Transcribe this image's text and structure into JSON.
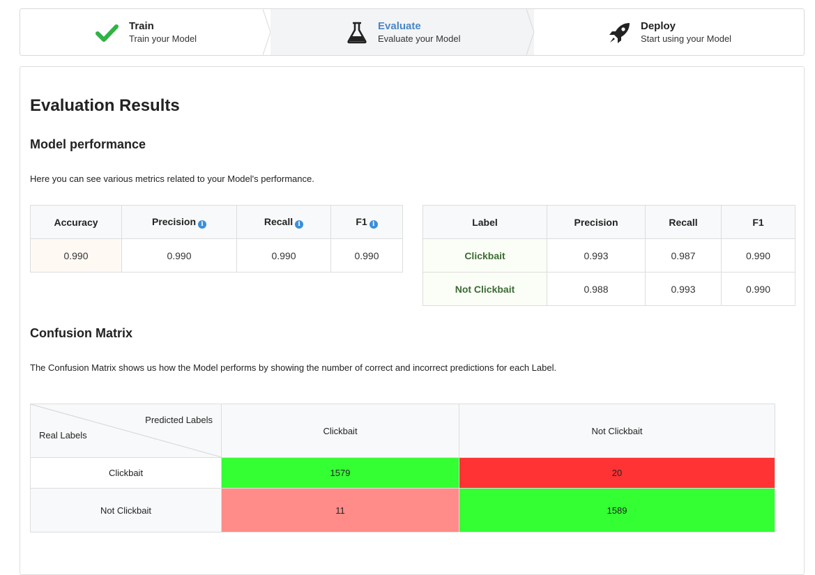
{
  "steps": [
    {
      "title": "Train",
      "desc": "Train your Model",
      "icon": "check-icon",
      "state": "done"
    },
    {
      "title": "Evaluate",
      "desc": "Evaluate your Model",
      "icon": "flask-icon",
      "state": "active"
    },
    {
      "title": "Deploy",
      "desc": "Start using your Model",
      "icon": "rocket-icon",
      "state": "pending"
    }
  ],
  "page_title": "Evaluation Results",
  "performance": {
    "heading": "Model performance",
    "description": "Here you can see various metrics related to your Model's performance.",
    "overall": {
      "headers": [
        "Accuracy",
        "Precision",
        "Recall",
        "F1"
      ],
      "values": [
        "0.990",
        "0.990",
        "0.990",
        "0.990"
      ]
    },
    "per_label": {
      "headers": [
        "Label",
        "Precision",
        "Recall",
        "F1"
      ],
      "rows": [
        [
          "Clickbait",
          "0.993",
          "0.987",
          "0.990"
        ],
        [
          "Not Clickbait",
          "0.988",
          "0.993",
          "0.990"
        ]
      ]
    }
  },
  "confusion": {
    "heading": "Confusion Matrix",
    "description": "The Confusion Matrix shows us how the Model performs by showing the number of correct and incorrect predictions for each Label.",
    "predicted_label": "Predicted Labels",
    "real_label": "Real Labels",
    "columns": [
      "Clickbait",
      "Not Clickbait"
    ],
    "rows": [
      {
        "label": "Clickbait",
        "values": [
          "1579",
          "20"
        ]
      },
      {
        "label": "Not Clickbait",
        "values": [
          "11",
          "1589"
        ]
      }
    ]
  },
  "colors": {
    "active_step": "#4a86c6",
    "check_green": "#2fb344",
    "info_blue": "#3b8fd9",
    "correct": "#33ff33",
    "wrong_high": "#ff3333",
    "wrong_low": "#ff8c88"
  }
}
